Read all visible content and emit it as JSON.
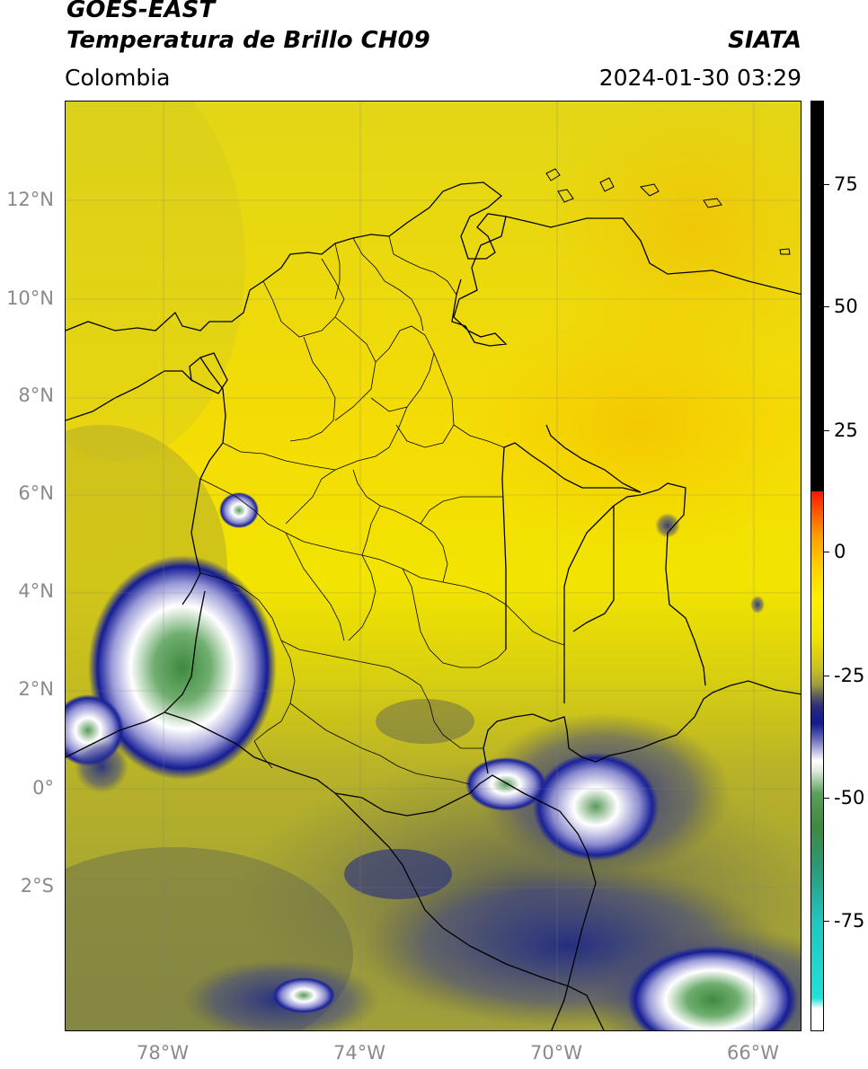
{
  "header": {
    "satellite": "GOES-EAST",
    "product": "Temperatura de Brillo CH09",
    "region": "Colombia",
    "agency": "SIATA",
    "datetime": "2024-01-30 03:29"
  },
  "map": {
    "lat_labels": [
      "12°N",
      "10°N",
      "8°N",
      "6°N",
      "4°N",
      "2°N",
      "0°",
      "2°S"
    ],
    "lat_values": [
      12,
      10,
      8,
      6,
      4,
      2,
      0,
      -2
    ],
    "lon_labels": [
      "78°W",
      "74°W",
      "70°W",
      "66°W"
    ],
    "lon_values": [
      -78,
      -74,
      -70,
      -66
    ],
    "extent": {
      "lon_min": -80,
      "lon_max": -65,
      "lat_min": -4.5,
      "lat_max": 14
    },
    "gridlines": true,
    "colors": {
      "warm": "#f7d900",
      "mid": "#b9b425",
      "cold_blue": "#101a8c",
      "cloud_white": "#ffffff",
      "cloud_green": "#3f8a3f"
    }
  },
  "colorbar": {
    "ticks": [
      "75",
      "50",
      "25",
      "0",
      "-25",
      "-50",
      "-75"
    ],
    "tick_values": [
      75,
      50,
      25,
      0,
      -25,
      -50,
      -75
    ],
    "range": [
      -95,
      90
    ],
    "colors": [
      "#ffffff",
      "#1fe0d8",
      "#2f9a6a",
      "#3f8a3f",
      "#ffffff",
      "#1a1ea0",
      "#5a5a5a",
      "#b3b030",
      "#e0d800",
      "#ffee00",
      "#ff9900",
      "#ff2200",
      "#000000"
    ]
  }
}
